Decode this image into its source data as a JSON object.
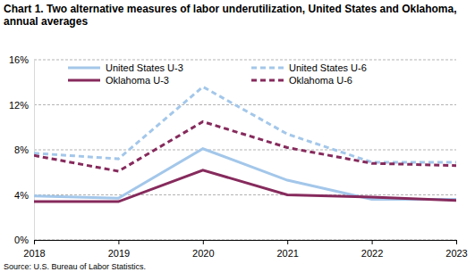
{
  "chart_data": {
    "type": "line",
    "title": "Chart 1. Two alternative measures of labor underutilization, United States and Oklahoma, annual averages",
    "annotations": [
      "Source: U.S. Bureau of Labor Statistics."
    ],
    "x": [
      2018,
      2019,
      2020,
      2021,
      2022,
      2023
    ],
    "xlim": [
      2018,
      2023
    ],
    "xticks": [
      2018,
      2019,
      2020,
      2021,
      2022,
      2023
    ],
    "ylim": [
      0,
      16
    ],
    "yticks": [
      {
        "value": 0,
        "label": "0%"
      },
      {
        "value": 4,
        "label": "4%"
      },
      {
        "value": 8,
        "label": "8%"
      },
      {
        "value": 12,
        "label": "12%"
      },
      {
        "value": 16,
        "label": "16%"
      }
    ],
    "grid": true,
    "legend": "top",
    "series": [
      {
        "name": "United States U-3",
        "color": "#a3c7ea",
        "line_style": "solid",
        "values": [
          3.9,
          3.7,
          8.1,
          5.3,
          3.6,
          3.6
        ]
      },
      {
        "name": "United States U-6",
        "color": "#a3c7ea",
        "line_style": "dashed",
        "values": [
          7.7,
          7.2,
          13.6,
          9.4,
          6.9,
          6.9
        ]
      },
      {
        "name": "Oklahoma U-3",
        "color": "#862a5c",
        "line_style": "solid",
        "values": [
          3.4,
          3.4,
          6.2,
          4.0,
          3.8,
          3.5
        ]
      },
      {
        "name": "Oklahoma U-6",
        "color": "#862a5c",
        "line_style": "dashed",
        "values": [
          7.5,
          6.1,
          10.5,
          8.2,
          6.8,
          6.6
        ]
      }
    ]
  }
}
